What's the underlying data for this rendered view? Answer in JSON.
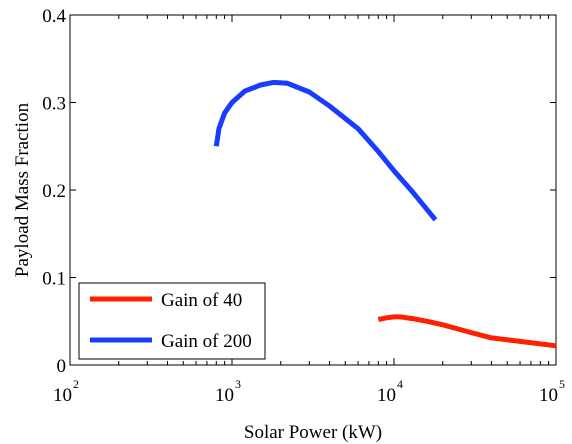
{
  "chart_data": {
    "type": "line",
    "xlabel": "Solar Power (kW)",
    "ylabel": "Payload Mass Fraction",
    "xscale": "log",
    "xlim": [
      100,
      100000
    ],
    "ylim": [
      0,
      0.4
    ],
    "x_ticks": [
      {
        "value": 100,
        "base": "10",
        "exp": "2"
      },
      {
        "value": 1000,
        "base": "10",
        "exp": "3"
      },
      {
        "value": 10000,
        "base": "10",
        "exp": "4"
      },
      {
        "value": 100000,
        "base": "10",
        "exp": "5"
      }
    ],
    "y_ticks": [
      {
        "value": 0,
        "label": "0"
      },
      {
        "value": 0.1,
        "label": "0.1"
      },
      {
        "value": 0.2,
        "label": "0.2"
      },
      {
        "value": 0.3,
        "label": "0.3"
      },
      {
        "value": 0.4,
        "label": "0.4"
      }
    ],
    "grid": false,
    "legend_position": "bottom-left",
    "series": [
      {
        "name": "Gain of 40",
        "color": "#ff2000",
        "x": [
          8000,
          9000,
          10000,
          11000,
          13000,
          16000,
          20000,
          25000,
          30000,
          40000,
          60000,
          100000
        ],
        "y": [
          0.052,
          0.054,
          0.055,
          0.055,
          0.053,
          0.05,
          0.046,
          0.041,
          0.037,
          0.031,
          0.027,
          0.022
        ]
      },
      {
        "name": "Gain of 200",
        "color": "#1a3cff",
        "x": [
          800,
          830,
          900,
          1000,
          1200,
          1500,
          1800,
          2200,
          3000,
          4000,
          6000,
          8000,
          10000,
          13000,
          18000
        ],
        "y": [
          0.25,
          0.27,
          0.288,
          0.3,
          0.313,
          0.32,
          0.323,
          0.322,
          0.312,
          0.296,
          0.27,
          0.244,
          0.222,
          0.198,
          0.166
        ]
      }
    ]
  }
}
